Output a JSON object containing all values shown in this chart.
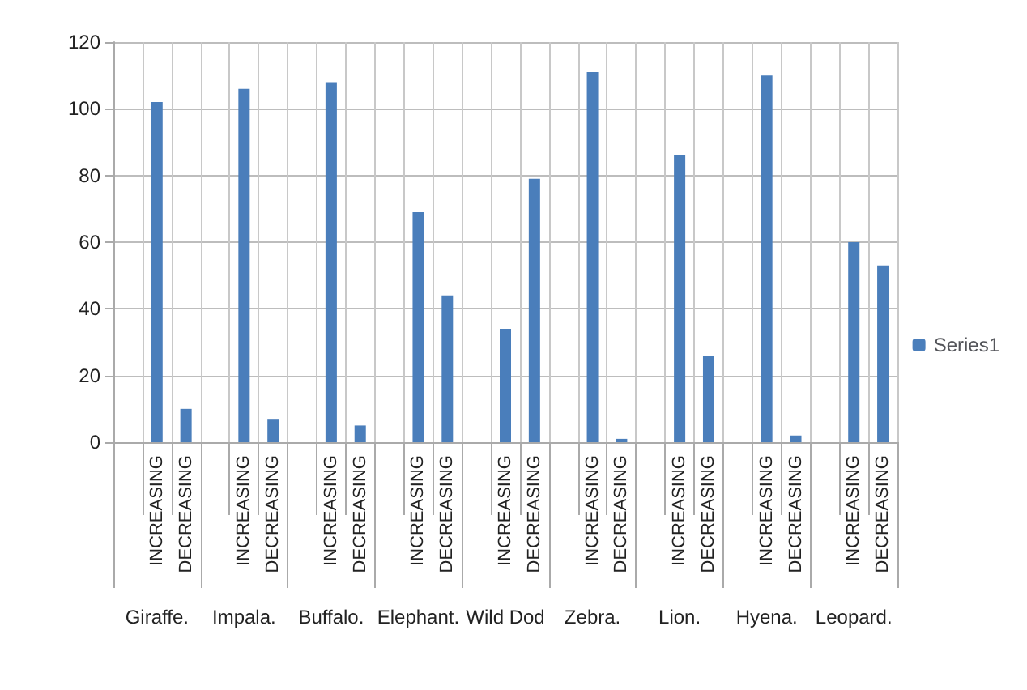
{
  "chart_data": {
    "type": "bar",
    "categories": [
      null,
      "INCREASING",
      "DECREASING",
      null,
      "INCREASING",
      "DECREASING",
      null,
      "INCREASING",
      "DECREASING",
      null,
      "INCREASING",
      "DECREASING",
      null,
      "INCREASING",
      "DECREASING",
      null,
      "INCREASING",
      "DECREASING",
      null,
      "INCREASING",
      "DECREASING",
      null,
      "INCREASING",
      "DECREASING",
      null,
      "INCREASING",
      "DECREASING"
    ],
    "series": [
      {
        "name": "Series1",
        "color": "#4a7ebb",
        "values": [
          null,
          102,
          10,
          null,
          106,
          7,
          null,
          108,
          5,
          null,
          69,
          44,
          null,
          34,
          79,
          null,
          111,
          1,
          null,
          86,
          26,
          null,
          110,
          2,
          null,
          60,
          53
        ]
      }
    ],
    "annotations": [
      "Giraffe.",
      "Impala.",
      "Buffalo.",
      "Elephant.",
      "Wild Dod",
      "Zebra.",
      "Lion.",
      "Hyena.",
      "Leopard."
    ],
    "ylim": [
      0,
      120
    ],
    "yticks": [
      0,
      20,
      40,
      60,
      80,
      100,
      120
    ],
    "grid": true,
    "legend": "right"
  }
}
